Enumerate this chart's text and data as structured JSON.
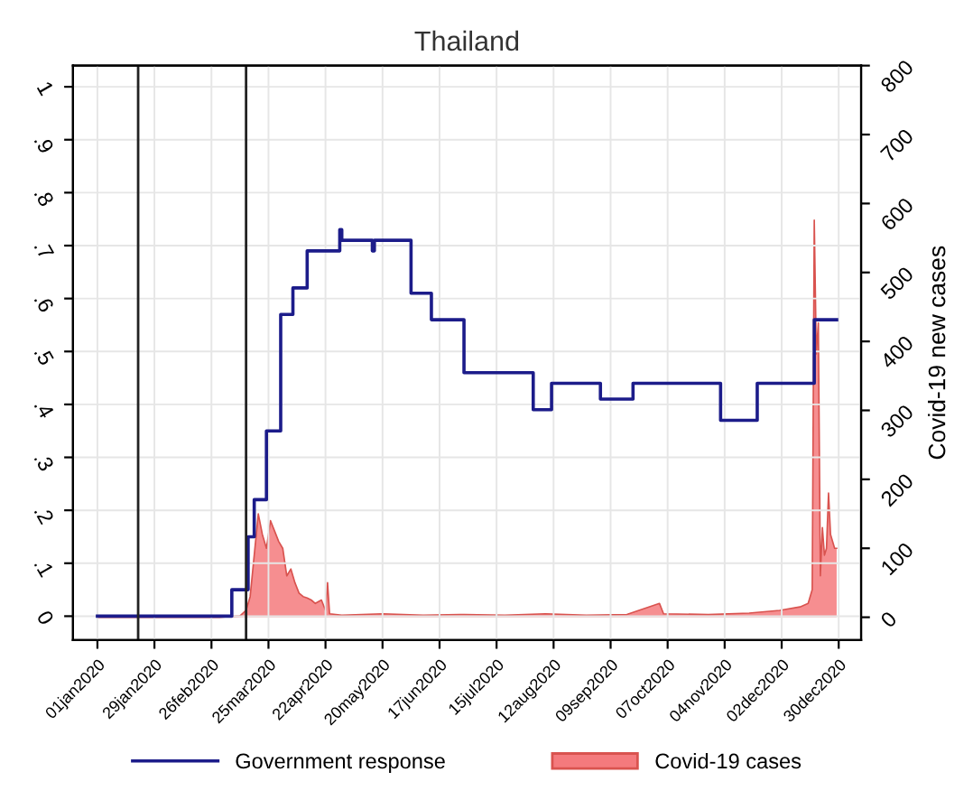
{
  "chart_data": {
    "type": "step",
    "title": "Thailand",
    "y2label": "Covid-19 new cases",
    "xlim": [
      "2019-12-20",
      "2021-01-10"
    ],
    "xticks": [
      {
        "value": "2020-01-01",
        "label": "01jan2020"
      },
      {
        "value": "2020-01-29",
        "label": "29jan2020"
      },
      {
        "value": "2020-02-26",
        "label": "26feb2020"
      },
      {
        "value": "2020-03-25",
        "label": "25mar2020"
      },
      {
        "value": "2020-04-22",
        "label": "22apr2020"
      },
      {
        "value": "2020-05-20",
        "label": "20may2020"
      },
      {
        "value": "2020-06-17",
        "label": "17jun2020"
      },
      {
        "value": "2020-07-15",
        "label": "15jul2020"
      },
      {
        "value": "2020-08-12",
        "label": "12aug2020"
      },
      {
        "value": "2020-09-09",
        "label": "09sep2020"
      },
      {
        "value": "2020-10-07",
        "label": "07oct2020"
      },
      {
        "value": "2020-11-04",
        "label": "04nov2020"
      },
      {
        "value": "2020-12-02",
        "label": "02dec2020"
      },
      {
        "value": "2020-12-30",
        "label": "30dec2020"
      }
    ],
    "ylim": [
      -0.045,
      1.04
    ],
    "yticks": [
      0,
      {
        "value": 0.1,
        "label": ".1"
      },
      {
        "value": 0.2,
        "label": ".2"
      },
      {
        "value": 0.3,
        "label": ".3"
      },
      {
        "value": 0.4,
        "label": ".4"
      },
      {
        "value": 0.5,
        "label": ".5"
      },
      {
        "value": 0.6,
        "label": ".6"
      },
      {
        "value": 0.7,
        "label": ".7"
      },
      {
        "value": 0.8,
        "label": ".8"
      },
      {
        "value": 0.9,
        "label": ".9"
      },
      1
    ],
    "y2lim": [
      -33,
      800
    ],
    "y2ticks": [
      0,
      100,
      200,
      300,
      400,
      500,
      600,
      700,
      800
    ],
    "grid": true,
    "legend": "bottom",
    "ref_lines": [
      {
        "axis": "x",
        "value": "2020-01-21",
        "color": "#222222"
      },
      {
        "axis": "x",
        "value": "2020-03-14",
        "color": "#222222"
      }
    ],
    "series": [
      {
        "name": "Covid-19 cases",
        "type": "area",
        "axis": "y2",
        "color": "#f47a7d",
        "x": [
          "2020-01-01",
          "2020-03-01",
          "2020-03-11",
          "2020-03-14",
          "2020-03-16",
          "2020-03-18",
          "2020-03-20",
          "2020-03-22",
          "2020-03-24",
          "2020-03-26",
          "2020-03-28",
          "2020-03-30",
          "2020-04-01",
          "2020-04-03",
          "2020-04-05",
          "2020-04-07",
          "2020-04-09",
          "2020-04-11",
          "2020-04-13",
          "2020-04-15",
          "2020-04-17",
          "2020-04-20",
          "2020-04-22",
          "2020-04-23",
          "2020-04-24",
          "2020-04-30",
          "2020-05-20",
          "2020-06-09",
          "2020-06-29",
          "2020-07-19",
          "2020-08-08",
          "2020-08-28",
          "2020-09-17",
          "2020-10-03",
          "2020-10-05",
          "2020-10-27",
          "2020-11-16",
          "2020-12-01",
          "2020-12-11",
          "2020-12-15",
          "2020-12-17",
          "2020-12-18",
          "2020-12-19",
          "2020-12-20",
          "2020-12-21",
          "2020-12-22",
          "2020-12-23",
          "2020-12-24",
          "2020-12-25",
          "2020-12-26",
          "2020-12-28",
          "2020-12-29"
        ],
        "values": [
          0,
          0,
          2,
          10,
          30,
          90,
          150,
          120,
          100,
          140,
          125,
          110,
          100,
          60,
          70,
          50,
          35,
          30,
          28,
          25,
          20,
          25,
          10,
          50,
          5,
          3,
          5,
          3,
          4,
          3,
          5,
          3,
          4,
          20,
          5,
          4,
          6,
          10,
          15,
          20,
          40,
          576,
          382,
          427,
          60,
          130,
          90,
          100,
          180,
          120,
          100,
          100
        ]
      },
      {
        "name": "Government response",
        "color": "#1c1c8a",
        "x": [
          "2020-01-01",
          "2020-03-07",
          "2020-03-15",
          "2020-03-18",
          "2020-03-24",
          "2020-03-31",
          "2020-04-06",
          "2020-04-13",
          "2020-04-29",
          "2020-04-30",
          "2020-05-15",
          "2020-05-16",
          "2020-06-03",
          "2020-06-13",
          "2020-06-29",
          "2020-08-02",
          "2020-08-11",
          "2020-09-04",
          "2020-09-20",
          "2020-11-02",
          "2020-11-20",
          "2020-12-18",
          "2020-12-29"
        ],
        "values": [
          0,
          0.05,
          0.15,
          0.22,
          0.35,
          0.57,
          0.62,
          0.69,
          0.73,
          0.71,
          0.69,
          0.71,
          0.61,
          0.56,
          0.46,
          0.39,
          0.44,
          0.41,
          0.44,
          0.37,
          0.44,
          0.56,
          0.56
        ]
      }
    ]
  }
}
